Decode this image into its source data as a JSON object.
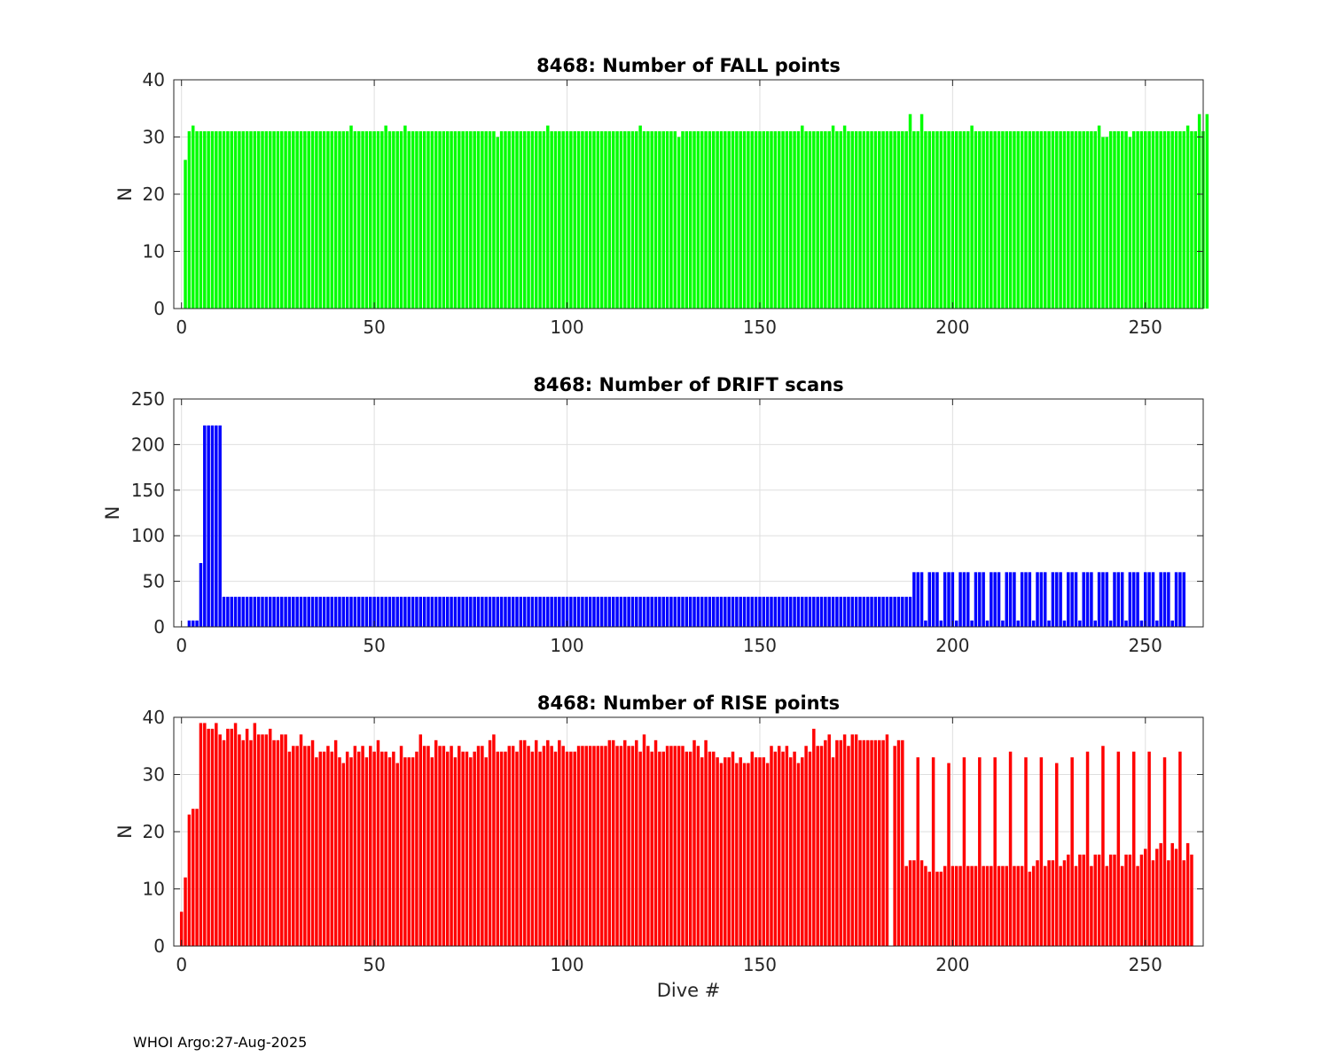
{
  "footer": "WHOI Argo:27-Aug-2025",
  "chart_data": [
    {
      "type": "bar",
      "title": "8468: Number of FALL points",
      "xlabel": "",
      "ylabel": "N",
      "xlim": [
        -2,
        265
      ],
      "ylim": [
        0,
        40
      ],
      "xticks": [
        0,
        50,
        100,
        150,
        200,
        250
      ],
      "yticks": [
        0,
        10,
        20,
        30,
        40
      ],
      "grid": true,
      "color": "#00ff00",
      "x_start": 1,
      "values": [
        26,
        31,
        32,
        31,
        31,
        31,
        31,
        31,
        31,
        31,
        31,
        31,
        31,
        31,
        31,
        31,
        31,
        31,
        31,
        31,
        31,
        31,
        31,
        31,
        31,
        31,
        31,
        31,
        31,
        31,
        31,
        31,
        31,
        31,
        31,
        31,
        31,
        31,
        31,
        31,
        31,
        31,
        31,
        32,
        31,
        31,
        31,
        31,
        31,
        31,
        31,
        31,
        32,
        31,
        31,
        31,
        31,
        32,
        31,
        31,
        31,
        31,
        31,
        31,
        31,
        31,
        31,
        31,
        31,
        31,
        31,
        31,
        31,
        31,
        31,
        31,
        31,
        31,
        31,
        31,
        31,
        30,
        31,
        31,
        31,
        31,
        31,
        31,
        31,
        31,
        31,
        31,
        31,
        31,
        32,
        31,
        31,
        31,
        31,
        31,
        31,
        31,
        31,
        31,
        31,
        31,
        31,
        31,
        31,
        31,
        31,
        31,
        31,
        31,
        31,
        31,
        31,
        31,
        32,
        31,
        31,
        31,
        31,
        31,
        31,
        31,
        31,
        31,
        30,
        31,
        31,
        31,
        31,
        31,
        31,
        31,
        31,
        31,
        31,
        31,
        31,
        31,
        31,
        31,
        31,
        31,
        31,
        31,
        31,
        31,
        31,
        31,
        31,
        31,
        31,
        31,
        31,
        31,
        31,
        31,
        32,
        31,
        31,
        31,
        31,
        31,
        31,
        31,
        32,
        31,
        31,
        32,
        31,
        31,
        31,
        31,
        31,
        31,
        31,
        31,
        31,
        31,
        31,
        31,
        31,
        31,
        31,
        31,
        34,
        31,
        31,
        34,
        31,
        31,
        31,
        31,
        31,
        31,
        31,
        31,
        31,
        31,
        31,
        31,
        32,
        31,
        31,
        31,
        31,
        31,
        31,
        31,
        31,
        31,
        31,
        31,
        31,
        31,
        31,
        31,
        31,
        31,
        31,
        31,
        31,
        31,
        31,
        31,
        31,
        31,
        31,
        31,
        31,
        31,
        31,
        31,
        31,
        32,
        30,
        30,
        31,
        31,
        31,
        31,
        31,
        30,
        31,
        31,
        31,
        31,
        31,
        31,
        31,
        31,
        31,
        31,
        31,
        31,
        31,
        31,
        32,
        31,
        31,
        34,
        31,
        34
      ]
    },
    {
      "type": "bar",
      "title": "8468: Number of DRIFT scans",
      "xlabel": "",
      "ylabel": "N",
      "xlim": [
        -2,
        265
      ],
      "ylim": [
        0,
        250
      ],
      "xticks": [
        0,
        50,
        100,
        150,
        200,
        250
      ],
      "yticks": [
        0,
        50,
        100,
        150,
        200,
        250
      ],
      "grid": true,
      "color": "#0000ff",
      "x_start": 1,
      "values": [
        0,
        7,
        7,
        7,
        70,
        221,
        221,
        221,
        221,
        221,
        33,
        33,
        33,
        33,
        33,
        33,
        33,
        33,
        33,
        33,
        33,
        33,
        33,
        33,
        33,
        33,
        33,
        33,
        33,
        33,
        33,
        33,
        33,
        33,
        33,
        33,
        33,
        33,
        33,
        33,
        33,
        33,
        33,
        33,
        33,
        33,
        33,
        33,
        33,
        33,
        33,
        33,
        33,
        33,
        33,
        33,
        33,
        33,
        33,
        33,
        33,
        33,
        33,
        33,
        33,
        33,
        33,
        33,
        33,
        33,
        33,
        33,
        33,
        33,
        33,
        33,
        33,
        33,
        33,
        33,
        33,
        33,
        33,
        33,
        33,
        33,
        33,
        33,
        33,
        33,
        33,
        33,
        33,
        33,
        33,
        33,
        33,
        33,
        33,
        33,
        33,
        33,
        33,
        33,
        33,
        33,
        33,
        33,
        33,
        33,
        33,
        33,
        33,
        33,
        33,
        33,
        33,
        33,
        33,
        33,
        33,
        33,
        33,
        33,
        33,
        33,
        33,
        33,
        33,
        33,
        33,
        33,
        33,
        33,
        33,
        33,
        33,
        33,
        33,
        33,
        33,
        33,
        33,
        33,
        33,
        33,
        33,
        33,
        33,
        33,
        33,
        33,
        33,
        33,
        33,
        33,
        33,
        33,
        33,
        33,
        33,
        33,
        33,
        33,
        33,
        33,
        33,
        33,
        33,
        33,
        33,
        33,
        33,
        33,
        33,
        33,
        33,
        33,
        33,
        33,
        33,
        33,
        33,
        33,
        33,
        33,
        33,
        33,
        33,
        60,
        60,
        60,
        7,
        60,
        60,
        60,
        7,
        60,
        60,
        60,
        7,
        60,
        60,
        60,
        7,
        60,
        60,
        60,
        7,
        60,
        60,
        60,
        7,
        60,
        60,
        60,
        7,
        60,
        60,
        60,
        7,
        60,
        60,
        60,
        7,
        60,
        60,
        60,
        7,
        60,
        60,
        60,
        7,
        60,
        60,
        60,
        7,
        60,
        60,
        60,
        7,
        60,
        60,
        60,
        7,
        60,
        60,
        60,
        7,
        60,
        60,
        60,
        7,
        60,
        60,
        60,
        7,
        60,
        60,
        60
      ]
    },
    {
      "type": "bar",
      "title": "8468: Number of RISE points",
      "xlabel": "Dive #",
      "ylabel": "N",
      "xlim": [
        -2,
        265
      ],
      "ylim": [
        0,
        40
      ],
      "xticks": [
        0,
        50,
        100,
        150,
        200,
        250
      ],
      "yticks": [
        0,
        10,
        20,
        30,
        40
      ],
      "grid": true,
      "color": "#ff0000",
      "x_start": 0,
      "values": [
        6,
        12,
        23,
        24,
        24,
        39,
        39,
        38,
        38,
        39,
        37,
        36,
        38,
        38,
        39,
        37,
        36,
        38,
        36,
        39,
        37,
        37,
        37,
        38,
        36,
        36,
        37,
        37,
        34,
        35,
        35,
        37,
        35,
        35,
        36,
        33,
        34,
        34,
        35,
        34,
        36,
        33,
        32,
        34,
        33,
        35,
        34,
        35,
        33,
        35,
        34,
        36,
        34,
        34,
        33,
        34,
        32,
        35,
        33,
        33,
        33,
        34,
        37,
        35,
        35,
        33,
        36,
        35,
        35,
        34,
        35,
        33,
        35,
        34,
        34,
        33,
        34,
        35,
        35,
        33,
        36,
        37,
        34,
        34,
        34,
        35,
        35,
        34,
        36,
        36,
        35,
        34,
        36,
        34,
        35,
        36,
        35,
        34,
        36,
        35,
        34,
        34,
        34,
        35,
        35,
        35,
        35,
        35,
        35,
        35,
        35,
        36,
        36,
        35,
        35,
        36,
        35,
        35,
        36,
        34,
        37,
        35,
        34,
        36,
        34,
        34,
        35,
        35,
        35,
        35,
        35,
        34,
        34,
        36,
        35,
        33,
        36,
        34,
        34,
        33,
        32,
        33,
        33,
        34,
        32,
        33,
        32,
        32,
        34,
        33,
        33,
        33,
        32,
        35,
        34,
        35,
        34,
        35,
        33,
        34,
        32,
        33,
        35,
        34,
        38,
        35,
        35,
        36,
        37,
        33,
        36,
        36,
        37,
        35,
        37,
        37,
        36,
        36,
        36,
        36,
        36,
        36,
        36,
        37,
        0,
        35,
        36,
        36,
        14,
        15,
        15,
        33,
        15,
        14,
        13,
        33,
        13,
        13,
        14,
        32,
        14,
        14,
        14,
        33,
        14,
        14,
        14,
        33,
        14,
        14,
        14,
        33,
        14,
        14,
        14,
        34,
        14,
        14,
        14,
        33,
        13,
        14,
        15,
        33,
        14,
        15,
        15,
        32,
        14,
        15,
        16,
        33,
        14,
        16,
        16,
        34,
        14,
        16,
        16,
        35,
        14,
        16,
        16,
        34,
        14,
        16,
        16,
        34,
        14,
        16,
        17,
        34,
        15,
        17,
        18,
        33,
        15,
        18,
        17,
        34,
        15,
        18,
        16
      ]
    }
  ]
}
